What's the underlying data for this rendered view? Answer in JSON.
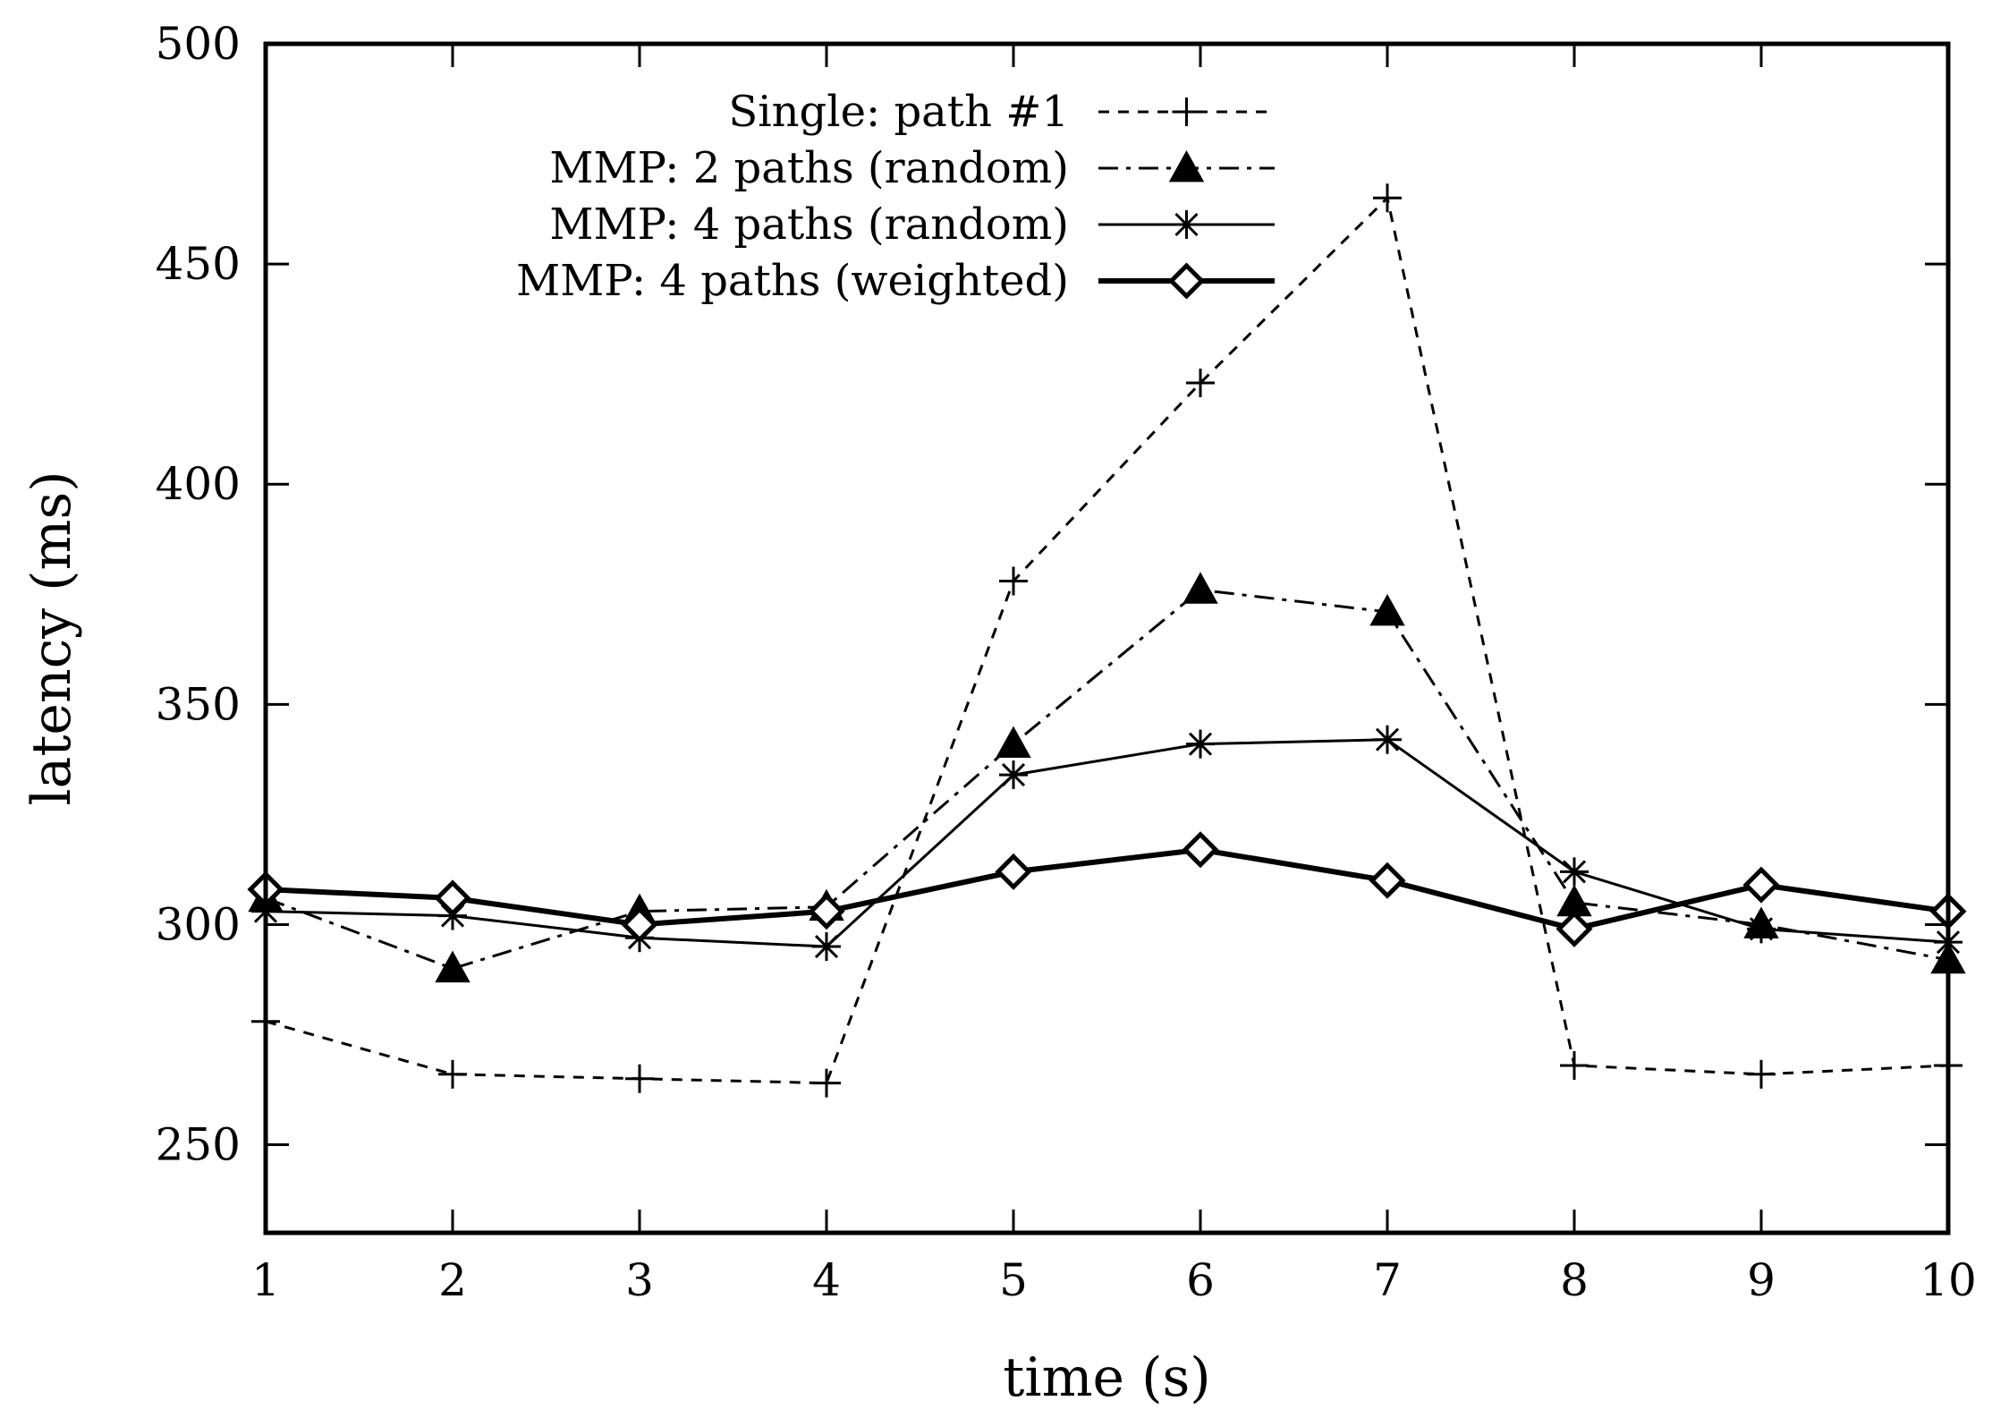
{
  "chart_data": {
    "type": "line",
    "title": "",
    "xlabel": "time (s)",
    "ylabel": "latency (ms)",
    "x": [
      1,
      2,
      3,
      4,
      5,
      6,
      7,
      8,
      9,
      10
    ],
    "xlim": [
      1,
      10
    ],
    "ylim": [
      230,
      500
    ],
    "xticks": [
      1,
      2,
      3,
      4,
      5,
      6,
      7,
      8,
      9,
      10
    ],
    "yticks": [
      250,
      300,
      350,
      400,
      450,
      500
    ],
    "grid": false,
    "legend_position": "top-center",
    "series": [
      {
        "name": "Single: path #1",
        "marker": "plus",
        "line_style": "dashed",
        "values": [
          278,
          266,
          265,
          264,
          378,
          423,
          465,
          268,
          266,
          268
        ]
      },
      {
        "name": "MMP: 2 paths (random)",
        "marker": "triangle",
        "line_style": "dash-dot",
        "values": [
          306,
          290,
          303,
          304,
          341,
          376,
          371,
          305,
          300,
          292
        ]
      },
      {
        "name": "MMP: 4 paths (random)",
        "marker": "asterisk",
        "line_style": "solid-thin",
        "values": [
          303,
          302,
          297,
          295,
          334,
          341,
          342,
          312,
          299,
          296
        ]
      },
      {
        "name": "MMP: 4 paths (weighted)",
        "marker": "diamond",
        "line_style": "solid-thick",
        "values": [
          308,
          306,
          300,
          303,
          312,
          317,
          310,
          299,
          309,
          303
        ]
      }
    ]
  },
  "colors": {
    "line": "#000000",
    "background": "#ffffff"
  }
}
